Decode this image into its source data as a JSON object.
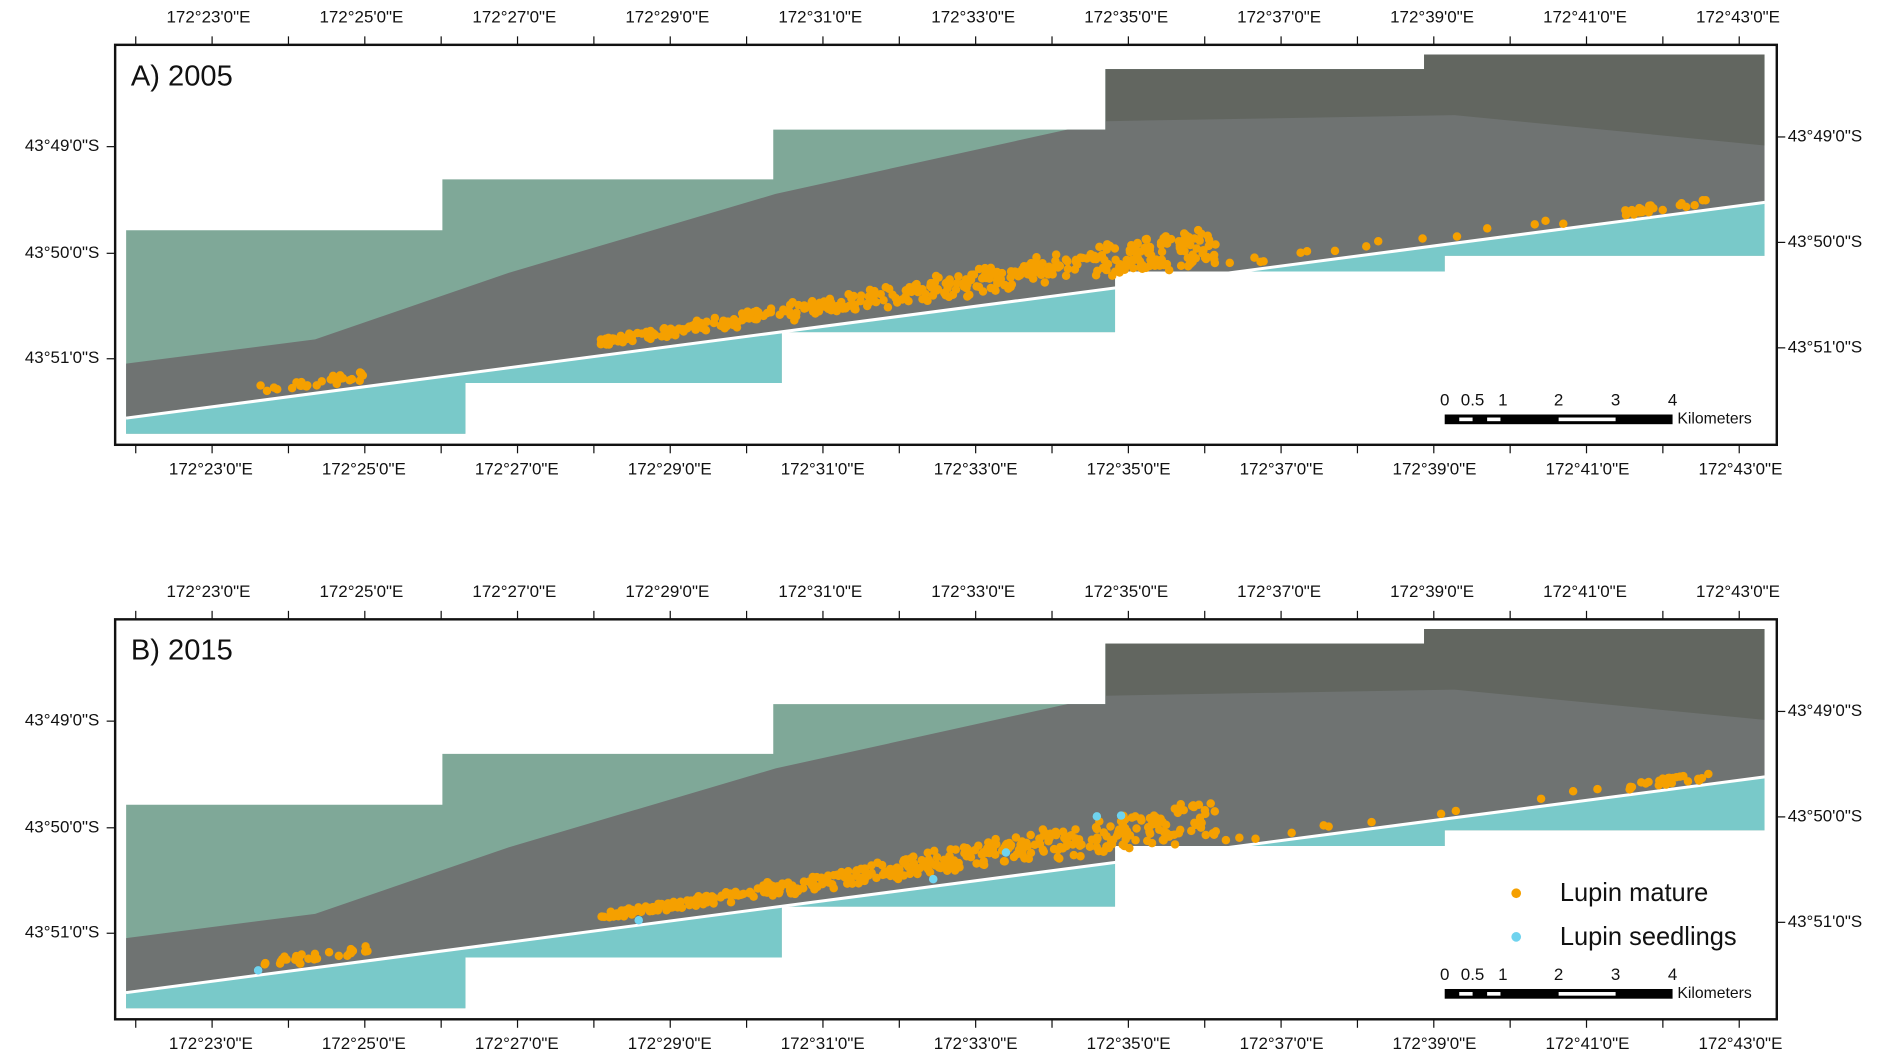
{
  "figure": {
    "lon_labels": [
      "172°23'0\"E",
      "172°25'0\"E",
      "172°27'0\"E",
      "172°29'0\"E",
      "172°31'0\"E",
      "172°33'0\"E",
      "172°35'0\"E",
      "172°37'0\"E",
      "172°39'0\"E",
      "172°41'0\"E",
      "172°43'0\"E"
    ],
    "lat_labels_left": [
      "43°49'0\"S",
      "43°50'0\"S",
      "43°51'0\"S"
    ],
    "lat_labels_right": [
      "43°49'0\"S",
      "43°50'0\"S",
      "43°51'0\"S"
    ],
    "scale_bar": {
      "ticks": [
        "0",
        "0.5",
        "1",
        "2",
        "3",
        "4"
      ],
      "unit": "Kilometers"
    },
    "panels": [
      {
        "label": "A) 2005"
      },
      {
        "label": "B) 2015",
        "legend": [
          "Lupin mature",
          "Lupin seedlings"
        ]
      }
    ]
  }
}
